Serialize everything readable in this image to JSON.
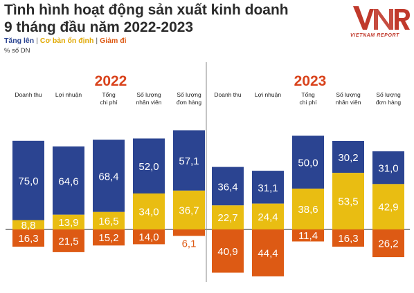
{
  "header": {
    "title_line1": "Tình hình hoạt động sản xuất kinh doanh",
    "title_line2": "9 tháng đầu năm 2022-2023",
    "unit": "% số DN"
  },
  "logo": {
    "mark": "VNR",
    "subtitle": "VIETNAM REPORT",
    "color": "#c0392b"
  },
  "chart_data": {
    "type": "bar",
    "stacked": true,
    "categories": [
      "Doanh thu",
      "Lợi nhuận",
      "Tổng chi phí",
      "Số lượng nhân viên",
      "Số lượng đơn hàng"
    ],
    "category_lines": [
      [
        "Doanh thu"
      ],
      [
        "Lợi nhuận"
      ],
      [
        "Tổng",
        "chi phí"
      ],
      [
        "Số lượng",
        "nhân viên"
      ],
      [
        "Số lượng",
        "đơn hàng"
      ]
    ],
    "legend": [
      {
        "label": "Tăng lên",
        "color": "#2b4491"
      },
      {
        "label": "Cơ bản ổn định",
        "color": "#e9bd12"
      },
      {
        "label": "Giảm đi",
        "color": "#dd5a14"
      }
    ],
    "panels": [
      {
        "year": "2022",
        "series": [
          {
            "name": "Tăng lên",
            "values": [
              75.0,
              64.6,
              68.4,
              52.0,
              57.1
            ]
          },
          {
            "name": "Cơ bản ổn định",
            "values": [
              8.8,
              13.9,
              16.5,
              34.0,
              36.7
            ]
          },
          {
            "name": "Giảm đi",
            "values": [
              16.3,
              21.5,
              15.2,
              14.0,
              6.1
            ]
          }
        ],
        "labels": {
          "Tăng lên": [
            "75,0",
            "64,6",
            "68,4",
            "52,0",
            "57,1"
          ],
          "Cơ bản ổn định": [
            "8,8",
            "13,9",
            "16,5",
            "34,0",
            "36,7"
          ],
          "Giảm đi": [
            "16,3",
            "21,5",
            "15,2",
            "14,0",
            "6,1"
          ]
        }
      },
      {
        "year": "2023",
        "series": [
          {
            "name": "Tăng lên",
            "values": [
              36.4,
              31.1,
              50.0,
              30.2,
              31.0
            ]
          },
          {
            "name": "Cơ bản ổn định",
            "values": [
              22.7,
              24.4,
              38.6,
              53.5,
              42.9
            ]
          },
          {
            "name": "Giảm đi",
            "values": [
              40.9,
              44.4,
              11.4,
              16.3,
              26.2
            ]
          }
        ],
        "labels": {
          "Tăng lên": [
            "36,4",
            "31,1",
            "50,0",
            "30,2",
            "31,0"
          ],
          "Cơ bản ổn định": [
            "22,7",
            "24,4",
            "38,6",
            "53,5",
            "42,9"
          ],
          "Giảm đi": [
            "40,9",
            "44,4",
            "11,4",
            "16,3",
            "26,2"
          ]
        }
      }
    ]
  }
}
